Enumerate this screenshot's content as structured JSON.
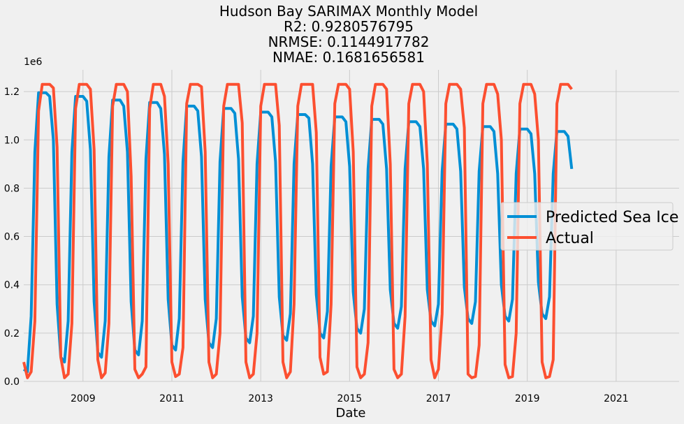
{
  "chart_data": {
    "type": "line",
    "title_lines": [
      "Hudson Bay SARIMAX Monthly Model",
      "R2: 0.9280576795",
      "NRMSE: 0.1144917782",
      "NMAE: 0.1681656581"
    ],
    "xlabel": "Date",
    "ylabel": "",
    "y_offset_label": "1e6",
    "x_range": [
      "2007-09",
      "2022-06"
    ],
    "ylim": [
      0,
      1290000
    ],
    "x_ticks": [
      "2009",
      "2011",
      "2013",
      "2015",
      "2017",
      "2019",
      "2021"
    ],
    "y_ticks": [
      "0.0",
      "0.2",
      "0.4",
      "0.6",
      "0.8",
      "1.0",
      "1.2"
    ],
    "y_tick_values": [
      0,
      200000,
      400000,
      600000,
      800000,
      1000000,
      1200000
    ],
    "grid": true,
    "legend_position": "center-right",
    "series": [
      {
        "name": "Predicted Sea Ice",
        "color": "#008fd5",
        "x_start": "2007-09",
        "values": [
          50000,
          40000,
          270000,
          950000,
          1195000,
          1195000,
          1195000,
          1180000,
          1000000,
          320000,
          100000,
          80000,
          250000,
          950000,
          1180000,
          1180000,
          1180000,
          1160000,
          960000,
          330000,
          120000,
          100000,
          250000,
          930000,
          1165000,
          1165000,
          1165000,
          1140000,
          950000,
          330000,
          130000,
          110000,
          250000,
          920000,
          1155000,
          1155000,
          1155000,
          1130000,
          940000,
          340000,
          150000,
          130000,
          260000,
          910000,
          1140000,
          1140000,
          1140000,
          1120000,
          930000,
          340000,
          160000,
          140000,
          260000,
          910000,
          1130000,
          1130000,
          1130000,
          1110000,
          920000,
          350000,
          180000,
          160000,
          270000,
          900000,
          1115000,
          1115000,
          1115000,
          1095000,
          910000,
          350000,
          190000,
          170000,
          280000,
          900000,
          1105000,
          1105000,
          1105000,
          1090000,
          900000,
          360000,
          200000,
          180000,
          290000,
          890000,
          1095000,
          1095000,
          1095000,
          1075000,
          890000,
          370000,
          220000,
          200000,
          300000,
          880000,
          1085000,
          1085000,
          1085000,
          1065000,
          880000,
          380000,
          240000,
          220000,
          310000,
          880000,
          1075000,
          1075000,
          1075000,
          1055000,
          880000,
          380000,
          250000,
          230000,
          320000,
          870000,
          1065000,
          1065000,
          1065000,
          1045000,
          870000,
          390000,
          260000,
          240000,
          330000,
          870000,
          1055000,
          1055000,
          1055000,
          1035000,
          860000,
          400000,
          270000,
          250000,
          340000,
          860000,
          1045000,
          1045000,
          1045000,
          1025000,
          860000,
          410000,
          280000,
          260000,
          350000,
          860000,
          1035000,
          1035000,
          1035000,
          1015000,
          880000
        ]
      },
      {
        "name": "Actual",
        "color": "#fc4f30",
        "x_start": "2007-09",
        "values": [
          80000,
          15000,
          40000,
          250000,
          1120000,
          1230000,
          1230000,
          1230000,
          1215000,
          970000,
          100000,
          15000,
          30000,
          240000,
          1130000,
          1230000,
          1230000,
          1230000,
          1210000,
          960000,
          90000,
          15000,
          35000,
          240000,
          1140000,
          1230000,
          1230000,
          1230000,
          1200000,
          850000,
          50000,
          15000,
          30000,
          60000,
          1130000,
          1230000,
          1230000,
          1230000,
          1180000,
          900000,
          80000,
          20000,
          30000,
          140000,
          1150000,
          1230000,
          1230000,
          1230000,
          1220000,
          950000,
          80000,
          15000,
          30000,
          200000,
          1140000,
          1230000,
          1230000,
          1230000,
          1230000,
          1070000,
          80000,
          15000,
          30000,
          200000,
          1140000,
          1230000,
          1230000,
          1230000,
          1230000,
          1060000,
          80000,
          15000,
          40000,
          320000,
          1140000,
          1230000,
          1230000,
          1230000,
          1230000,
          1030000,
          100000,
          30000,
          40000,
          320000,
          1150000,
          1230000,
          1230000,
          1230000,
          1210000,
          950000,
          60000,
          15000,
          30000,
          160000,
          1140000,
          1230000,
          1230000,
          1230000,
          1210000,
          900000,
          50000,
          15000,
          30000,
          270000,
          1150000,
          1230000,
          1230000,
          1230000,
          1200000,
          900000,
          90000,
          15000,
          50000,
          280000,
          1150000,
          1230000,
          1230000,
          1230000,
          1210000,
          1050000,
          30000,
          15000,
          20000,
          150000,
          1150000,
          1230000,
          1230000,
          1230000,
          1190000,
          1000000,
          70000,
          15000,
          20000,
          200000,
          1150000,
          1230000,
          1230000,
          1230000,
          1190000,
          1000000,
          80000,
          15000,
          20000,
          90000,
          1150000,
          1230000,
          1230000,
          1230000,
          1210000
        ]
      }
    ]
  }
}
